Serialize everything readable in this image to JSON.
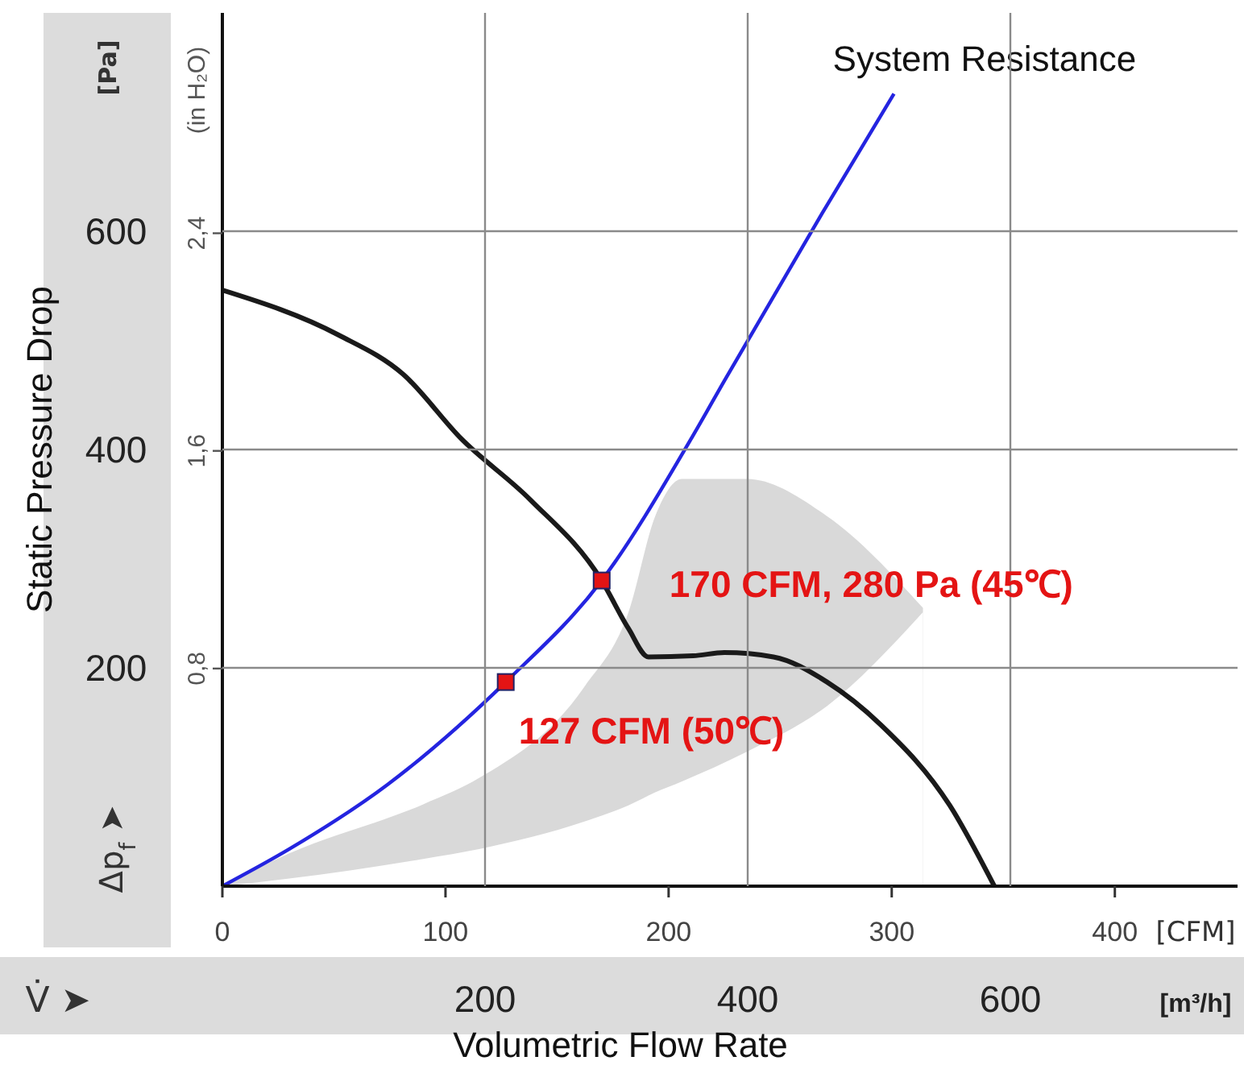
{
  "chart_data": {
    "type": "line",
    "xlabel": "Volumetric Flow Rate",
    "ylabel": "Static Pressure Drop",
    "y2label": "(in H₂O)",
    "x2label": "[m³/h]",
    "xlim": [
      0,
      455
    ],
    "xticks": [
      0,
      100,
      200,
      300,
      400
    ],
    "x2lim": [
      0,
      773
    ],
    "x2ticks": [
      200,
      400,
      600
    ],
    "ylim": [
      0,
      800
    ],
    "yticks": [
      200,
      400,
      600
    ],
    "y2lim": [
      0,
      3.21
    ],
    "y2ticks": [
      {
        "value": 0.8,
        "label": "0,8"
      },
      {
        "value": 1.6,
        "label": "1,6"
      },
      {
        "value": 2.4,
        "label": "2,4"
      }
    ],
    "grid": true,
    "series": [
      {
        "type": "area",
        "color": "#d9d9d9",
        "x": [
          0,
          30,
          90,
          115,
          162,
          182,
          194,
          206,
          235,
          271,
          314
        ],
        "values": [
          0,
          30,
          75,
          99,
          182,
          251,
          339,
          373,
          373,
          339,
          255
        ]
      },
      {
        "type": "area",
        "color": "#ffffff",
        "x": [
          0,
          30,
          90,
          115,
          162,
          182,
          194,
          206,
          235,
          271,
          314
        ],
        "values": [
          0,
          7,
          25,
          34,
          59,
          74,
          86,
          96,
          123,
          165,
          251
        ]
      },
      {
        "color": "#1a1a1a",
        "marker": "none",
        "x": [
          0,
          52,
          81,
          107,
          138,
          170,
          182,
          191,
          211,
          225,
          247,
          271,
          295,
          326,
          346
        ],
        "values": [
          546,
          505,
          469,
          410,
          354,
          280,
          236,
          210,
          211,
          214,
          210,
          187,
          148,
          74,
          0
        ]
      },
      {
        "name": "System Resistance",
        "color": "#2424e0",
        "marker": "none",
        "x": [
          0,
          30,
          74,
          127,
          170,
          211,
          225,
          269,
          301
        ],
        "values": [
          0,
          34,
          93,
          187,
          280,
          413,
          463,
          617,
          726
        ]
      },
      {
        "type": "scatter",
        "color": "#e41414",
        "marker": "square",
        "x": [
          127,
          170
        ],
        "values": [
          187,
          280
        ]
      }
    ],
    "annotations": [
      {
        "text": "170 CFM, 280 Pa (45℃)",
        "x": 170,
        "y": 280
      },
      {
        "text": "127 CFM (50℃)",
        "x": 127,
        "y": 187
      },
      "[Pa]",
      "[CFM]",
      "Δp$_{f}$ ➤",
      "V̇ ➤"
    ]
  }
}
